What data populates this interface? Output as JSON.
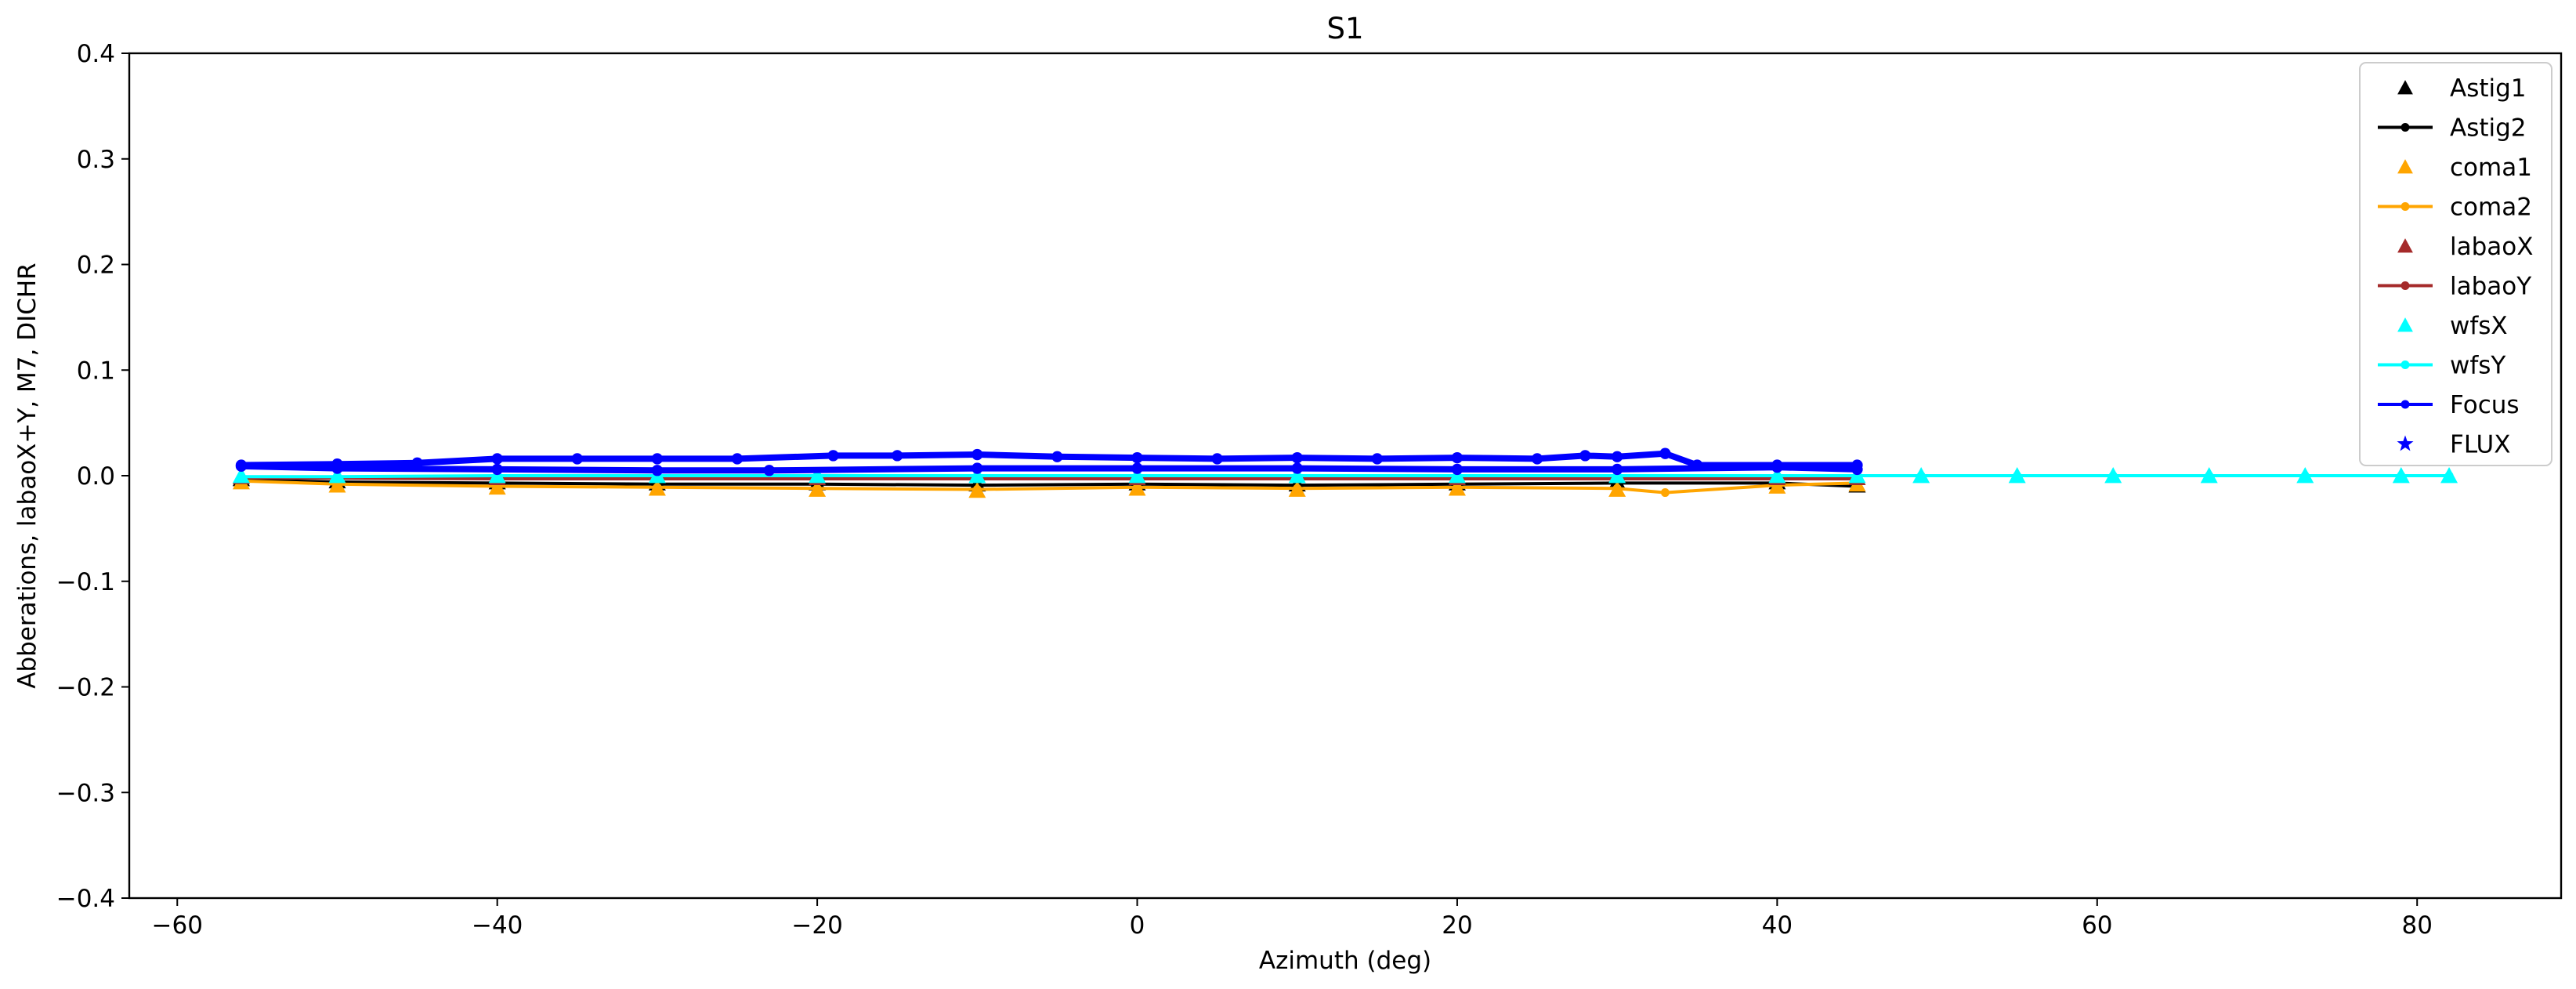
{
  "chart_data": {
    "type": "scatter",
    "title": "S1",
    "xlabel": "Azimuth (deg)",
    "ylabel": "Abberations, labaoX+Y, M7, DICHR",
    "xlim": [
      -63,
      89
    ],
    "ylim": [
      -0.4,
      0.4
    ],
    "xticks": [
      -60,
      -40,
      -20,
      0,
      20,
      40,
      60,
      80
    ],
    "xtick_labels": [
      "−60",
      "−40",
      "−20",
      "0",
      "20",
      "40",
      "60",
      "80"
    ],
    "yticks": [
      -0.4,
      -0.3,
      -0.2,
      -0.1,
      0.0,
      0.1,
      0.2,
      0.3,
      0.4
    ],
    "ytick_labels": [
      "−0.4",
      "−0.3",
      "−0.2",
      "−0.1",
      "0.0",
      "0.1",
      "0.2",
      "0.3",
      "0.4"
    ],
    "grid": false,
    "legend_position": "top-right",
    "series": [
      {
        "name": "Astig1",
        "color": "#000000",
        "marker": "triangle",
        "line": false,
        "x": [
          -56,
          -50,
          -40,
          -30,
          -20,
          -10,
          0,
          10,
          20,
          30,
          40,
          45
        ],
        "y": [
          -0.003,
          -0.005,
          -0.006,
          -0.007,
          -0.007,
          -0.008,
          -0.007,
          -0.008,
          -0.007,
          -0.006,
          -0.006,
          -0.009
        ]
      },
      {
        "name": "Astig2",
        "color": "#000000",
        "marker": "dot",
        "line": true,
        "x": [
          -56,
          -50,
          -40,
          -30,
          -20,
          -10,
          0,
          10,
          20,
          30,
          40,
          45
        ],
        "y": [
          -0.004,
          -0.006,
          -0.007,
          -0.008,
          -0.008,
          -0.009,
          -0.008,
          -0.009,
          -0.008,
          -0.007,
          -0.007,
          -0.01
        ]
      },
      {
        "name": "coma1",
        "color": "#ffa500",
        "marker": "triangle",
        "line": false,
        "x": [
          -56,
          -50,
          -40,
          -30,
          -20,
          -10,
          0,
          10,
          20,
          30,
          40,
          45
        ],
        "y": [
          -0.006,
          -0.009,
          -0.011,
          -0.012,
          -0.013,
          -0.014,
          -0.012,
          -0.013,
          -0.012,
          -0.013,
          -0.01,
          -0.008
        ]
      },
      {
        "name": "coma2",
        "color": "#ffa500",
        "marker": "dot",
        "line": true,
        "x": [
          -56,
          -50,
          -40,
          -30,
          -20,
          -10,
          0,
          10,
          20,
          30,
          33,
          40,
          45
        ],
        "y": [
          -0.005,
          -0.008,
          -0.01,
          -0.011,
          -0.012,
          -0.013,
          -0.011,
          -0.012,
          -0.011,
          -0.012,
          -0.016,
          -0.009,
          -0.007
        ]
      },
      {
        "name": "labaoX",
        "color": "#a52a2a",
        "marker": "triangle",
        "line": false,
        "x": [
          -56,
          -40,
          -20,
          0,
          20,
          40,
          45
        ],
        "y": [
          -0.001,
          -0.002,
          -0.002,
          -0.002,
          -0.002,
          -0.002,
          -0.002
        ]
      },
      {
        "name": "labaoY",
        "color": "#a52a2a",
        "marker": "dot",
        "line": true,
        "x": [
          -56,
          -40,
          -20,
          0,
          20,
          40,
          45
        ],
        "y": [
          -0.002,
          -0.003,
          -0.003,
          -0.003,
          -0.003,
          -0.003,
          -0.003
        ]
      },
      {
        "name": "wfsX",
        "color": "#00ffff",
        "marker": "triangle",
        "line": false,
        "x": [
          -56,
          -50,
          -40,
          -30,
          -20,
          -10,
          0,
          10,
          20,
          30,
          40,
          45,
          49,
          55,
          61,
          67,
          73,
          79,
          82
        ],
        "y": [
          0.0,
          0.0,
          0.0,
          0.0,
          0.0,
          0.0,
          0.0,
          0.0,
          0.0,
          0.0,
          0.0,
          0.0,
          0.0,
          0.0,
          0.0,
          0.0,
          0.0,
          0.0,
          0.0
        ]
      },
      {
        "name": "wfsY",
        "color": "#00ffff",
        "marker": "dot",
        "line": true,
        "x": [
          -56,
          -50,
          -40,
          -30,
          -20,
          -10,
          0,
          10,
          20,
          30,
          40,
          45,
          49,
          55,
          61,
          67,
          73,
          79,
          82
        ],
        "y": [
          -0.001,
          -0.001,
          0.0,
          0.0,
          0.0,
          0.0,
          0.0,
          0.0,
          0.0,
          0.0,
          0.0,
          0.0,
          0.0,
          0.0,
          0.0,
          0.0,
          0.0,
          0.0,
          0.0
        ]
      },
      {
        "name": "Focus",
        "color": "#0000ff",
        "marker": "dot",
        "line": true,
        "x": [
          -56,
          -50,
          -45,
          -40,
          -35,
          -30,
          -25,
          -19,
          -15,
          -10,
          -5,
          0,
          5,
          10,
          15,
          20,
          25,
          28,
          30,
          33,
          35,
          40,
          45,
          45,
          40,
          30,
          20,
          10,
          0,
          -10,
          -23,
          -30,
          -40,
          -50,
          -56
        ],
        "y": [
          0.01,
          0.011,
          0.012,
          0.016,
          0.016,
          0.016,
          0.016,
          0.019,
          0.019,
          0.02,
          0.018,
          0.017,
          0.016,
          0.017,
          0.016,
          0.017,
          0.016,
          0.019,
          0.018,
          0.021,
          0.01,
          0.01,
          0.01,
          0.006,
          0.008,
          0.006,
          0.006,
          0.007,
          0.007,
          0.007,
          0.005,
          0.005,
          0.006,
          0.007,
          0.009
        ]
      },
      {
        "name": "FLUX",
        "color": "#0000ff",
        "marker": "star",
        "line": false,
        "x": [],
        "y": []
      }
    ]
  }
}
